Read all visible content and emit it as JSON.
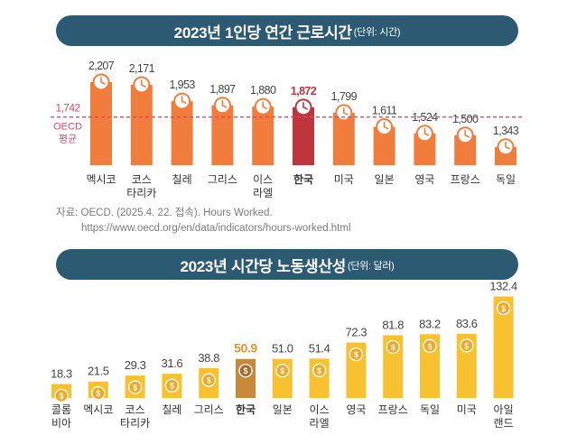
{
  "banner1": {
    "title": "2023년 1인당 연간 근로시간",
    "unit": "(단위: 시간)"
  },
  "banner2": {
    "title": "2023년 시간당 노동생산성",
    "unit": "(단위: 달러)"
  },
  "source": {
    "line1": "자료: OECD. (2025.4. 22. 접속). Hours Worked.",
    "line2": "https://www.oecd.org/en/data/indicators/hours-worked.html"
  },
  "colors": {
    "banner": "#2d5a73",
    "orange": "#f07d3c",
    "highlight": "#c0343d",
    "yellow": "#f7c12f",
    "korea_yellow": "#c88a3a",
    "coin": "#f5a623",
    "avg_line": "#d94b6a"
  },
  "icons": {
    "chart1_marker": "clock-icon",
    "chart2_marker": "dollar-coin-icon"
  },
  "chart_data": [
    {
      "type": "bar",
      "title": "2023년 1인당 연간 근로시간",
      "ylabel": "시간",
      "categories": [
        "멕시코",
        "코스\n타리카",
        "칠레",
        "그리스",
        "이스\n라엘",
        "한국",
        "미국",
        "일본",
        "영국",
        "프랑스",
        "독일"
      ],
      "values": [
        2207,
        2171,
        1953,
        1897,
        1880,
        1872,
        1799,
        1611,
        1524,
        1500,
        1343
      ],
      "value_labels": [
        "2,207",
        "2,171",
        "1,953",
        "1,897",
        "1,880",
        "1,872",
        "1,799",
        "1,611",
        "1,524",
        "1,500",
        "1,343"
      ],
      "highlight": "한국",
      "reference_line": {
        "value": 1742,
        "label": "1,742",
        "name": "OECD",
        "name2": "평균"
      }
    },
    {
      "type": "bar",
      "title": "2023년 시간당 노동생산성",
      "ylabel": "달러",
      "categories": [
        "콜롬\n비아",
        "멕시코",
        "코스\n타리카",
        "칠레",
        "그리스",
        "한국",
        "일본",
        "이스\n라엘",
        "영국",
        "프랑스",
        "독일",
        "미국",
        "아일\n랜드"
      ],
      "values": [
        18.3,
        21.5,
        29.3,
        31.6,
        38.8,
        50.9,
        51.0,
        51.4,
        72.3,
        81.8,
        83.2,
        83.6,
        132.4
      ],
      "value_labels": [
        "18.3",
        "21.5",
        "29.3",
        "31.6",
        "38.8",
        "50.9",
        "51.0",
        "51.4",
        "72.3",
        "81.8",
        "83.2",
        "83.6",
        "132.4"
      ],
      "highlight": "한국"
    }
  ]
}
